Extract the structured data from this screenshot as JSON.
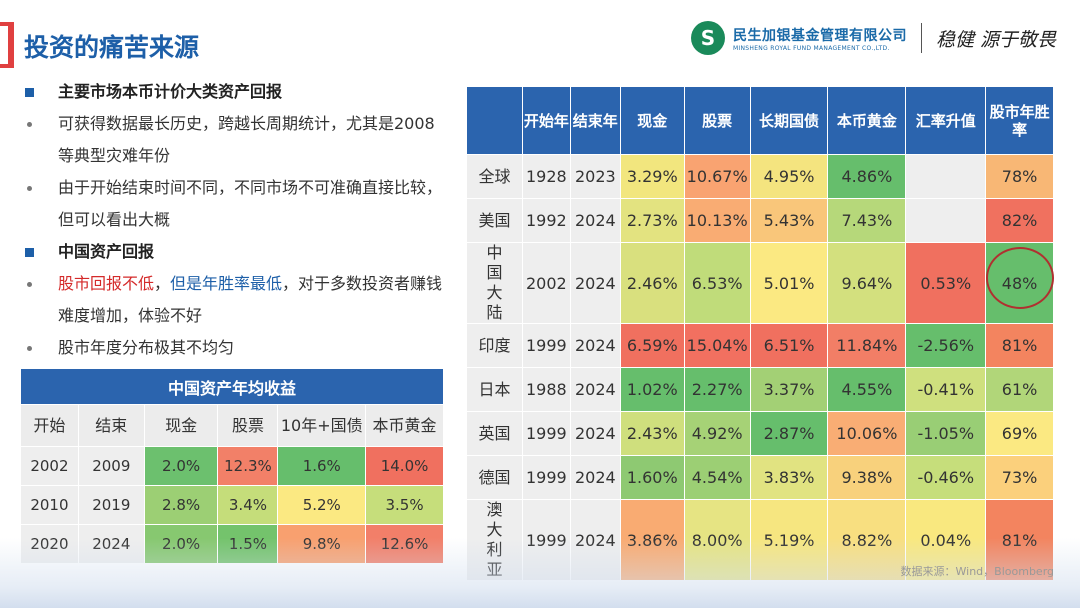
{
  "header": {
    "title": "投资的痛苦来源",
    "brand_cn": "民生加银基金管理有限公司",
    "brand_en": "MINSHENG ROYAL FUND MANAGEMENT CO.,LTD.",
    "brand_slogan": "稳健 源于敬畏",
    "logo_glyph": "S"
  },
  "bullets": [
    {
      "type": "head",
      "text": "主要市场本币计价大类资产回报"
    },
    {
      "type": "item",
      "text": "可获得数据最长历史，跨越长周期统计，尤其是2008等典型灾难年份"
    },
    {
      "type": "item",
      "text": "由于开始结束时间不同，不同市场不可准确直接比较，但可以看出大概"
    },
    {
      "type": "head",
      "text": "中国资产回报"
    },
    {
      "type": "mixed",
      "red": "股市回报不低",
      "sep": "，",
      "blue": "但是年胜率最低",
      "rest": "，对于多数投资者赚钱难度增加，体验不好"
    },
    {
      "type": "item",
      "text": "股市年度分布极其不均匀"
    }
  ],
  "small_table": {
    "title": "中国资产年均收益",
    "headers": [
      "开始",
      "结束",
      "现金",
      "股票",
      "10年+国债",
      "本币黄金"
    ],
    "rows": [
      [
        "2002",
        "2009",
        "2.0%",
        "12.3%",
        "1.6%",
        "14.0%"
      ],
      [
        "2010",
        "2019",
        "2.8%",
        "3.4%",
        "5.2%",
        "3.5%"
      ],
      [
        "2020",
        "2024",
        "2.0%",
        "1.5%",
        "9.8%",
        "12.6%"
      ]
    ],
    "colors": [
      [
        "",
        "",
        "#6cc06e",
        "#f28068",
        "#66be6c",
        "#f0705f"
      ],
      [
        "",
        "",
        "#9ccf74",
        "#c5dd7a",
        "#fbe982",
        "#c6de7b"
      ],
      [
        "",
        "",
        "#87c870",
        "#74c36c",
        "#f8a06f",
        "#f27f69"
      ]
    ]
  },
  "big_table": {
    "headers": [
      "",
      "开始年",
      "结束年",
      "现金",
      "股票",
      "长期国债",
      "本币黄金",
      "汇率升值",
      "股市年胜率"
    ],
    "rows": [
      [
        "全球",
        "1928",
        "2023",
        "3.29%",
        "10.67%",
        "4.95%",
        "4.86%",
        "",
        "78%"
      ],
      [
        "美国",
        "1992",
        "2024",
        "2.73%",
        "10.13%",
        "5.43%",
        "7.43%",
        "",
        "82%"
      ],
      [
        "中国大陆",
        "2002",
        "2024",
        "2.46%",
        "6.53%",
        "5.01%",
        "9.64%",
        "0.53%",
        "48%"
      ],
      [
        "印度",
        "1999",
        "2024",
        "6.59%",
        "15.04%",
        "6.51%",
        "11.84%",
        "-2.56%",
        "81%"
      ],
      [
        "日本",
        "1988",
        "2024",
        "1.02%",
        "2.27%",
        "3.37%",
        "4.55%",
        "-0.41%",
        "61%"
      ],
      [
        "英国",
        "1999",
        "2024",
        "2.43%",
        "4.92%",
        "2.87%",
        "10.06%",
        "-1.05%",
        "69%"
      ],
      [
        "德国",
        "1999",
        "2024",
        "1.60%",
        "4.54%",
        "3.83%",
        "9.38%",
        "-0.46%",
        "73%"
      ],
      [
        "澳大利亚",
        "1999",
        "2024",
        "3.86%",
        "8.00%",
        "5.19%",
        "8.82%",
        "0.04%",
        "81%"
      ]
    ],
    "colors": [
      [
        "",
        "",
        "",
        "#f2e67e",
        "#f9a371",
        "#f4e47f",
        "#66be6c",
        "#eeeeee",
        "#f8b775"
      ],
      [
        "",
        "",
        "",
        "#e3e380",
        "#f9ac73",
        "#f9c67a",
        "#b6d87a",
        "#eeeeee",
        "#f0715f"
      ],
      [
        "",
        "",
        "",
        "#d9e07e",
        "#c0dc7a",
        "#fbe982",
        "#d3e07e",
        "#f0705f",
        "#66be6c"
      ],
      [
        "",
        "",
        "",
        "#f0705f",
        "#f27060",
        "#f0705f",
        "#f27e66",
        "#66be6c",
        "#f3845f"
      ],
      [
        "",
        "",
        "",
        "#66be6c",
        "#66be6c",
        "#a3d075",
        "#66be6c",
        "#cfe07e",
        "#b1d679"
      ],
      [
        "",
        "",
        "",
        "#cfdf7d",
        "#a6d276",
        "#66be6c",
        "#f9ad74",
        "#99ce75",
        "#fbe982"
      ],
      [
        "",
        "",
        "",
        "#8ec972",
        "#9ccf74",
        "#e1e381",
        "#f8d17c",
        "#c6de7b",
        "#fbd07c"
      ],
      [
        "",
        "",
        "",
        "#f9ab72",
        "#e6e483",
        "#f6e680",
        "#f8df80",
        "#f9e87f",
        "#f3845f"
      ]
    ]
  },
  "source": "数据来源：Wind，Bloomberg"
}
